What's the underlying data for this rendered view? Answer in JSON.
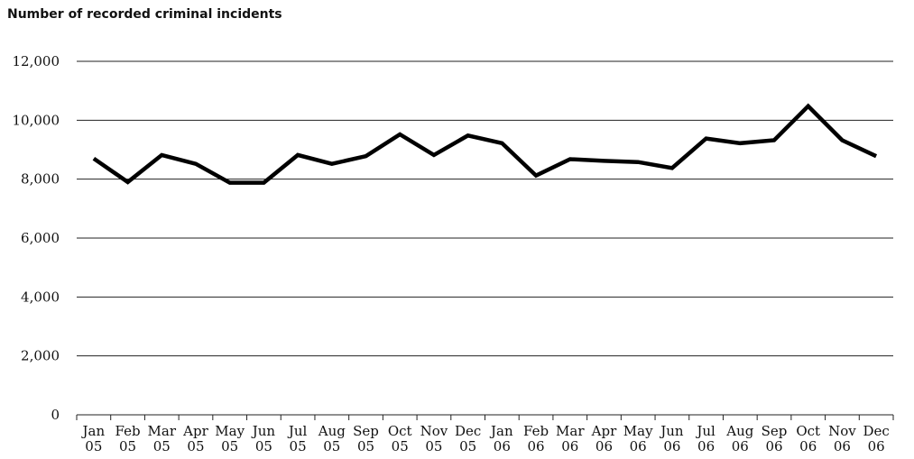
{
  "chart_data": {
    "type": "line",
    "title": "",
    "ylabel": "Number of recorded criminal incidents",
    "xlabel": "",
    "ylim": [
      0,
      12000
    ],
    "yticks": [
      0,
      2000,
      4000,
      6000,
      8000,
      10000,
      12000
    ],
    "ytick_labels": [
      "0",
      "2,000",
      "4,000",
      "6,000",
      "8,000",
      "10,000",
      "12,000"
    ],
    "grid": true,
    "categories": [
      [
        "Jan",
        "05"
      ],
      [
        "Feb",
        "05"
      ],
      [
        "Mar",
        "05"
      ],
      [
        "Apr",
        "05"
      ],
      [
        "May",
        "05"
      ],
      [
        "Jun",
        "05"
      ],
      [
        "Jul",
        "05"
      ],
      [
        "Aug",
        "05"
      ],
      [
        "Sep",
        "05"
      ],
      [
        "Oct",
        "05"
      ],
      [
        "Nov",
        "05"
      ],
      [
        "Dec",
        "05"
      ],
      [
        "Jan",
        "06"
      ],
      [
        "Feb",
        "06"
      ],
      [
        "Mar",
        "06"
      ],
      [
        "Apr",
        "06"
      ],
      [
        "May",
        "06"
      ],
      [
        "Jun",
        "06"
      ],
      [
        "Jul",
        "06"
      ],
      [
        "Aug",
        "06"
      ],
      [
        "Sep",
        "06"
      ],
      [
        "Oct",
        "06"
      ],
      [
        "Nov",
        "06"
      ],
      [
        "Dec",
        "06"
      ]
    ],
    "series": [
      {
        "values": [
          8700,
          7900,
          8820,
          8520,
          7880,
          7880,
          8820,
          8520,
          8780,
          9520,
          8820,
          9480,
          9220,
          8120,
          8680,
          8620,
          8580,
          8380,
          9380,
          9220,
          9320,
          10480,
          9320,
          8780
        ],
        "color": "#000000"
      }
    ]
  }
}
